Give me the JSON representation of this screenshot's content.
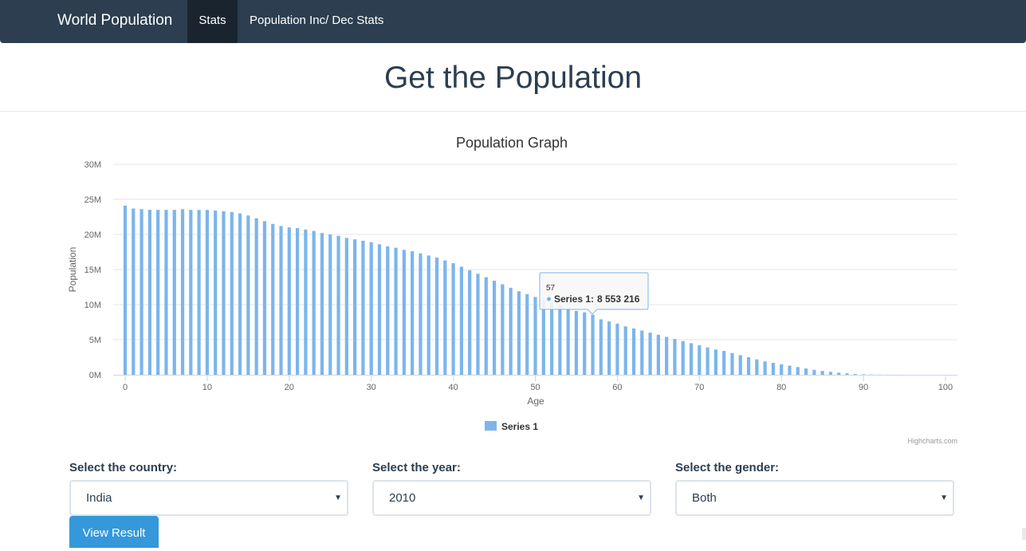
{
  "navbar": {
    "brand": "World Population",
    "links": [
      {
        "label": "Stats",
        "active": true
      },
      {
        "label": "Population Inc/ Dec Stats",
        "active": false
      }
    ],
    "bg_color": "#2c3e50"
  },
  "hero": {
    "title": "Get the Population"
  },
  "chart_data": {
    "type": "bar",
    "title": "Population Graph",
    "xlabel": "Age",
    "ylabel": "Population",
    "xlim": [
      0,
      100
    ],
    "ylim": [
      0,
      30000000
    ],
    "x_ticks": [
      "0",
      "10",
      "20",
      "30",
      "40",
      "50",
      "60",
      "70",
      "80",
      "90",
      "100"
    ],
    "y_ticks": [
      "0M",
      "5M",
      "10M",
      "15M",
      "20M",
      "25M",
      "30M"
    ],
    "grid": true,
    "legend_position": "bottom-center",
    "color": "#7cb5ec",
    "series": [
      {
        "name": "Series 1",
        "x": [
          0,
          1,
          2,
          3,
          4,
          5,
          6,
          7,
          8,
          9,
          10,
          11,
          12,
          13,
          14,
          15,
          16,
          17,
          18,
          19,
          20,
          21,
          22,
          23,
          24,
          25,
          26,
          27,
          28,
          29,
          30,
          31,
          32,
          33,
          34,
          35,
          36,
          37,
          38,
          39,
          40,
          41,
          42,
          43,
          44,
          45,
          46,
          47,
          48,
          49,
          50,
          51,
          52,
          53,
          54,
          55,
          56,
          57,
          58,
          59,
          60,
          61,
          62,
          63,
          64,
          65,
          66,
          67,
          68,
          69,
          70,
          71,
          72,
          73,
          74,
          75,
          76,
          77,
          78,
          79,
          80,
          81,
          82,
          83,
          84,
          85,
          86,
          87,
          88,
          89,
          90,
          91,
          92,
          93,
          94,
          95,
          96,
          97,
          98,
          99,
          100
        ],
        "values": [
          24100000,
          23700000,
          23600000,
          23500000,
          23500000,
          23500000,
          23500000,
          23600000,
          23500000,
          23500000,
          23500000,
          23400000,
          23300000,
          23200000,
          23000000,
          22700000,
          22300000,
          21900000,
          21500000,
          21200000,
          21000000,
          20900000,
          20700000,
          20500000,
          20200000,
          20000000,
          19800000,
          19500000,
          19300000,
          19100000,
          18900000,
          18600000,
          18300000,
          18100000,
          17800000,
          17600000,
          17300000,
          17000000,
          16700000,
          16300000,
          15900000,
          15400000,
          14900000,
          14400000,
          13900000,
          13400000,
          12900000,
          12400000,
          11900000,
          11500000,
          11100000,
          10600000,
          10300000,
          9900000,
          9500000,
          9100000,
          8900000,
          8553216,
          7900000,
          7600000,
          7300000,
          6900000,
          6600000,
          6300000,
          6000000,
          5700000,
          5400000,
          5100000,
          4800000,
          4500000,
          4200000,
          3900000,
          3600000,
          3400000,
          3100000,
          2800000,
          2500000,
          2200000,
          1900000,
          1700000,
          1500000,
          1300000,
          1100000,
          900000,
          700000,
          550000,
          420000,
          300000,
          200000,
          120000,
          70000,
          40000,
          20000,
          10000,
          5000,
          2000,
          1000,
          500,
          200,
          100,
          50
        ]
      }
    ],
    "tooltip": {
      "header": "57",
      "series_label": "Series 1:",
      "value": "8 553 216"
    },
    "credits": "Highcharts.com"
  },
  "form": {
    "country": {
      "label": "Select the country:",
      "value": "India"
    },
    "year": {
      "label": "Select the year:",
      "value": "2010"
    },
    "gender": {
      "label": "Select the gender:",
      "value": "Both"
    },
    "caret": "▼",
    "submit_label": "View Result",
    "accent_color": "#3498db"
  }
}
